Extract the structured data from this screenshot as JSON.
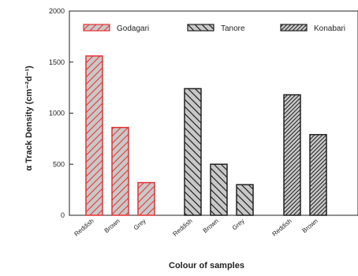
{
  "chart_data": {
    "type": "bar",
    "xlabel": "Colour of samples",
    "ylabel": "α Track Density (cm⁻²d⁻¹)",
    "ylim": [
      0,
      2000
    ],
    "yticks": [
      0,
      500,
      1000,
      1500,
      2000
    ],
    "legend_position": "top",
    "series": [
      {
        "name": "Godagari",
        "color": "#e83030",
        "fill": "#c8c8c8",
        "hatch": "forward-diagonal",
        "categories": [
          "Reddish",
          "Brown",
          "Grey"
        ],
        "values": [
          1560,
          860,
          320
        ]
      },
      {
        "name": "Tanore",
        "color": "#222222",
        "fill": "#c8c8c8",
        "hatch": "back-diagonal",
        "categories": [
          "Reddish",
          "Brown",
          "Grey"
        ],
        "values": [
          1240,
          500,
          300
        ]
      },
      {
        "name": "Konabari",
        "color": "#222222",
        "fill": "#c8c8c8",
        "hatch": "dense-diagonal",
        "categories": [
          "Reddish",
          "Brown"
        ],
        "values": [
          1180,
          790
        ]
      }
    ]
  }
}
